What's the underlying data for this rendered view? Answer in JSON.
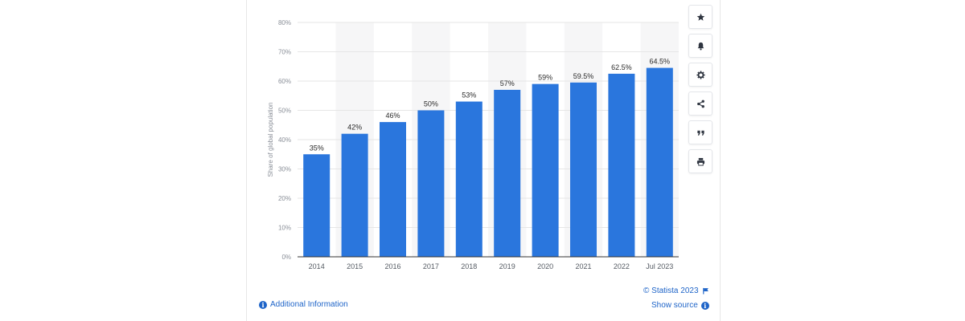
{
  "chart_data": {
    "type": "bar",
    "categories": [
      "2014",
      "2015",
      "2016",
      "2017",
      "2018",
      "2019",
      "2020",
      "2021",
      "2022",
      "Jul 2023"
    ],
    "values": [
      35,
      42,
      46,
      50,
      53,
      57,
      59,
      59.5,
      62.5,
      64.5
    ],
    "data_labels": [
      "35%",
      "42%",
      "46%",
      "50%",
      "53%",
      "57%",
      "59%",
      "59.5%",
      "62.5%",
      "64.5%"
    ],
    "ylabel": "Share of global population",
    "xlabel": "",
    "ylim": [
      0,
      80
    ],
    "yticks": [
      "0%",
      "10%",
      "20%",
      "30%",
      "40%",
      "50%",
      "60%",
      "70%",
      "80%"
    ],
    "grid": true,
    "bar_color": "#2a76dd",
    "band_color": "#f6f6f7"
  },
  "sidebar": {
    "buttons": [
      {
        "icon": "star-icon",
        "name": "favorite-button"
      },
      {
        "icon": "bell-icon",
        "name": "notification-button"
      },
      {
        "icon": "gear-icon",
        "name": "settings-button"
      },
      {
        "icon": "share-icon",
        "name": "share-button"
      },
      {
        "icon": "quote-icon",
        "name": "cite-button"
      },
      {
        "icon": "print-icon",
        "name": "print-button"
      }
    ]
  },
  "footer": {
    "additional_info": "Additional Information",
    "copyright": "© Statista 2023",
    "show_source": "Show source",
    "info_glyph": "i"
  },
  "colors": {
    "link": "#1e64c8",
    "icon": "#2f3540"
  }
}
